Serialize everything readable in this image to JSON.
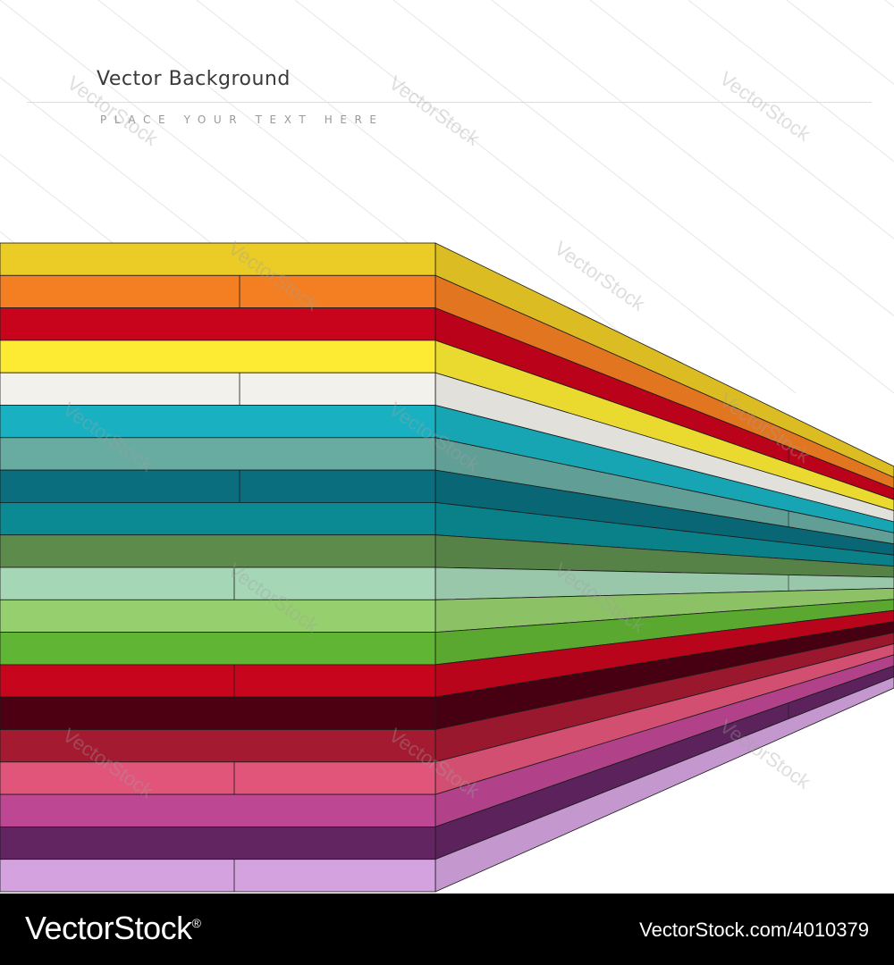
{
  "heading": {
    "title": "Vector Background",
    "subtitle": "PLACE YOUR TEXT HERE"
  },
  "watermark": {
    "text": "VectorStock"
  },
  "footer": {
    "brand": "VectorStock",
    "brand_mark": "®",
    "image_id": "VectorStock.com/4010379"
  },
  "stripes": [
    {
      "name": "yellow-ochre",
      "color": "#EBCB26"
    },
    {
      "name": "orange",
      "color": "#F37F22"
    },
    {
      "name": "red",
      "color": "#C8031C"
    },
    {
      "name": "yellow",
      "color": "#FCEA33"
    },
    {
      "name": "off-white",
      "color": "#F2F1EC"
    },
    {
      "name": "cyan",
      "color": "#19B1C2"
    },
    {
      "name": "sea-green",
      "color": "#68ABA1"
    },
    {
      "name": "dark-teal",
      "color": "#0A6E7E"
    },
    {
      "name": "teal",
      "color": "#0B8A93"
    },
    {
      "name": "olive-green",
      "color": "#5C8B4C"
    },
    {
      "name": "mint",
      "color": "#A5D6B6"
    },
    {
      "name": "light-green",
      "color": "#96D06E"
    },
    {
      "name": "green",
      "color": "#61B534"
    },
    {
      "name": "crimson",
      "color": "#C7051D"
    },
    {
      "name": "maroon",
      "color": "#4C0012"
    },
    {
      "name": "wine",
      "color": "#A41A30"
    },
    {
      "name": "pink",
      "color": "#E2557A"
    },
    {
      "name": "magenta",
      "color": "#BE4793"
    },
    {
      "name": "purple",
      "color": "#632562"
    },
    {
      "name": "lavender",
      "color": "#D3A2DF"
    }
  ]
}
